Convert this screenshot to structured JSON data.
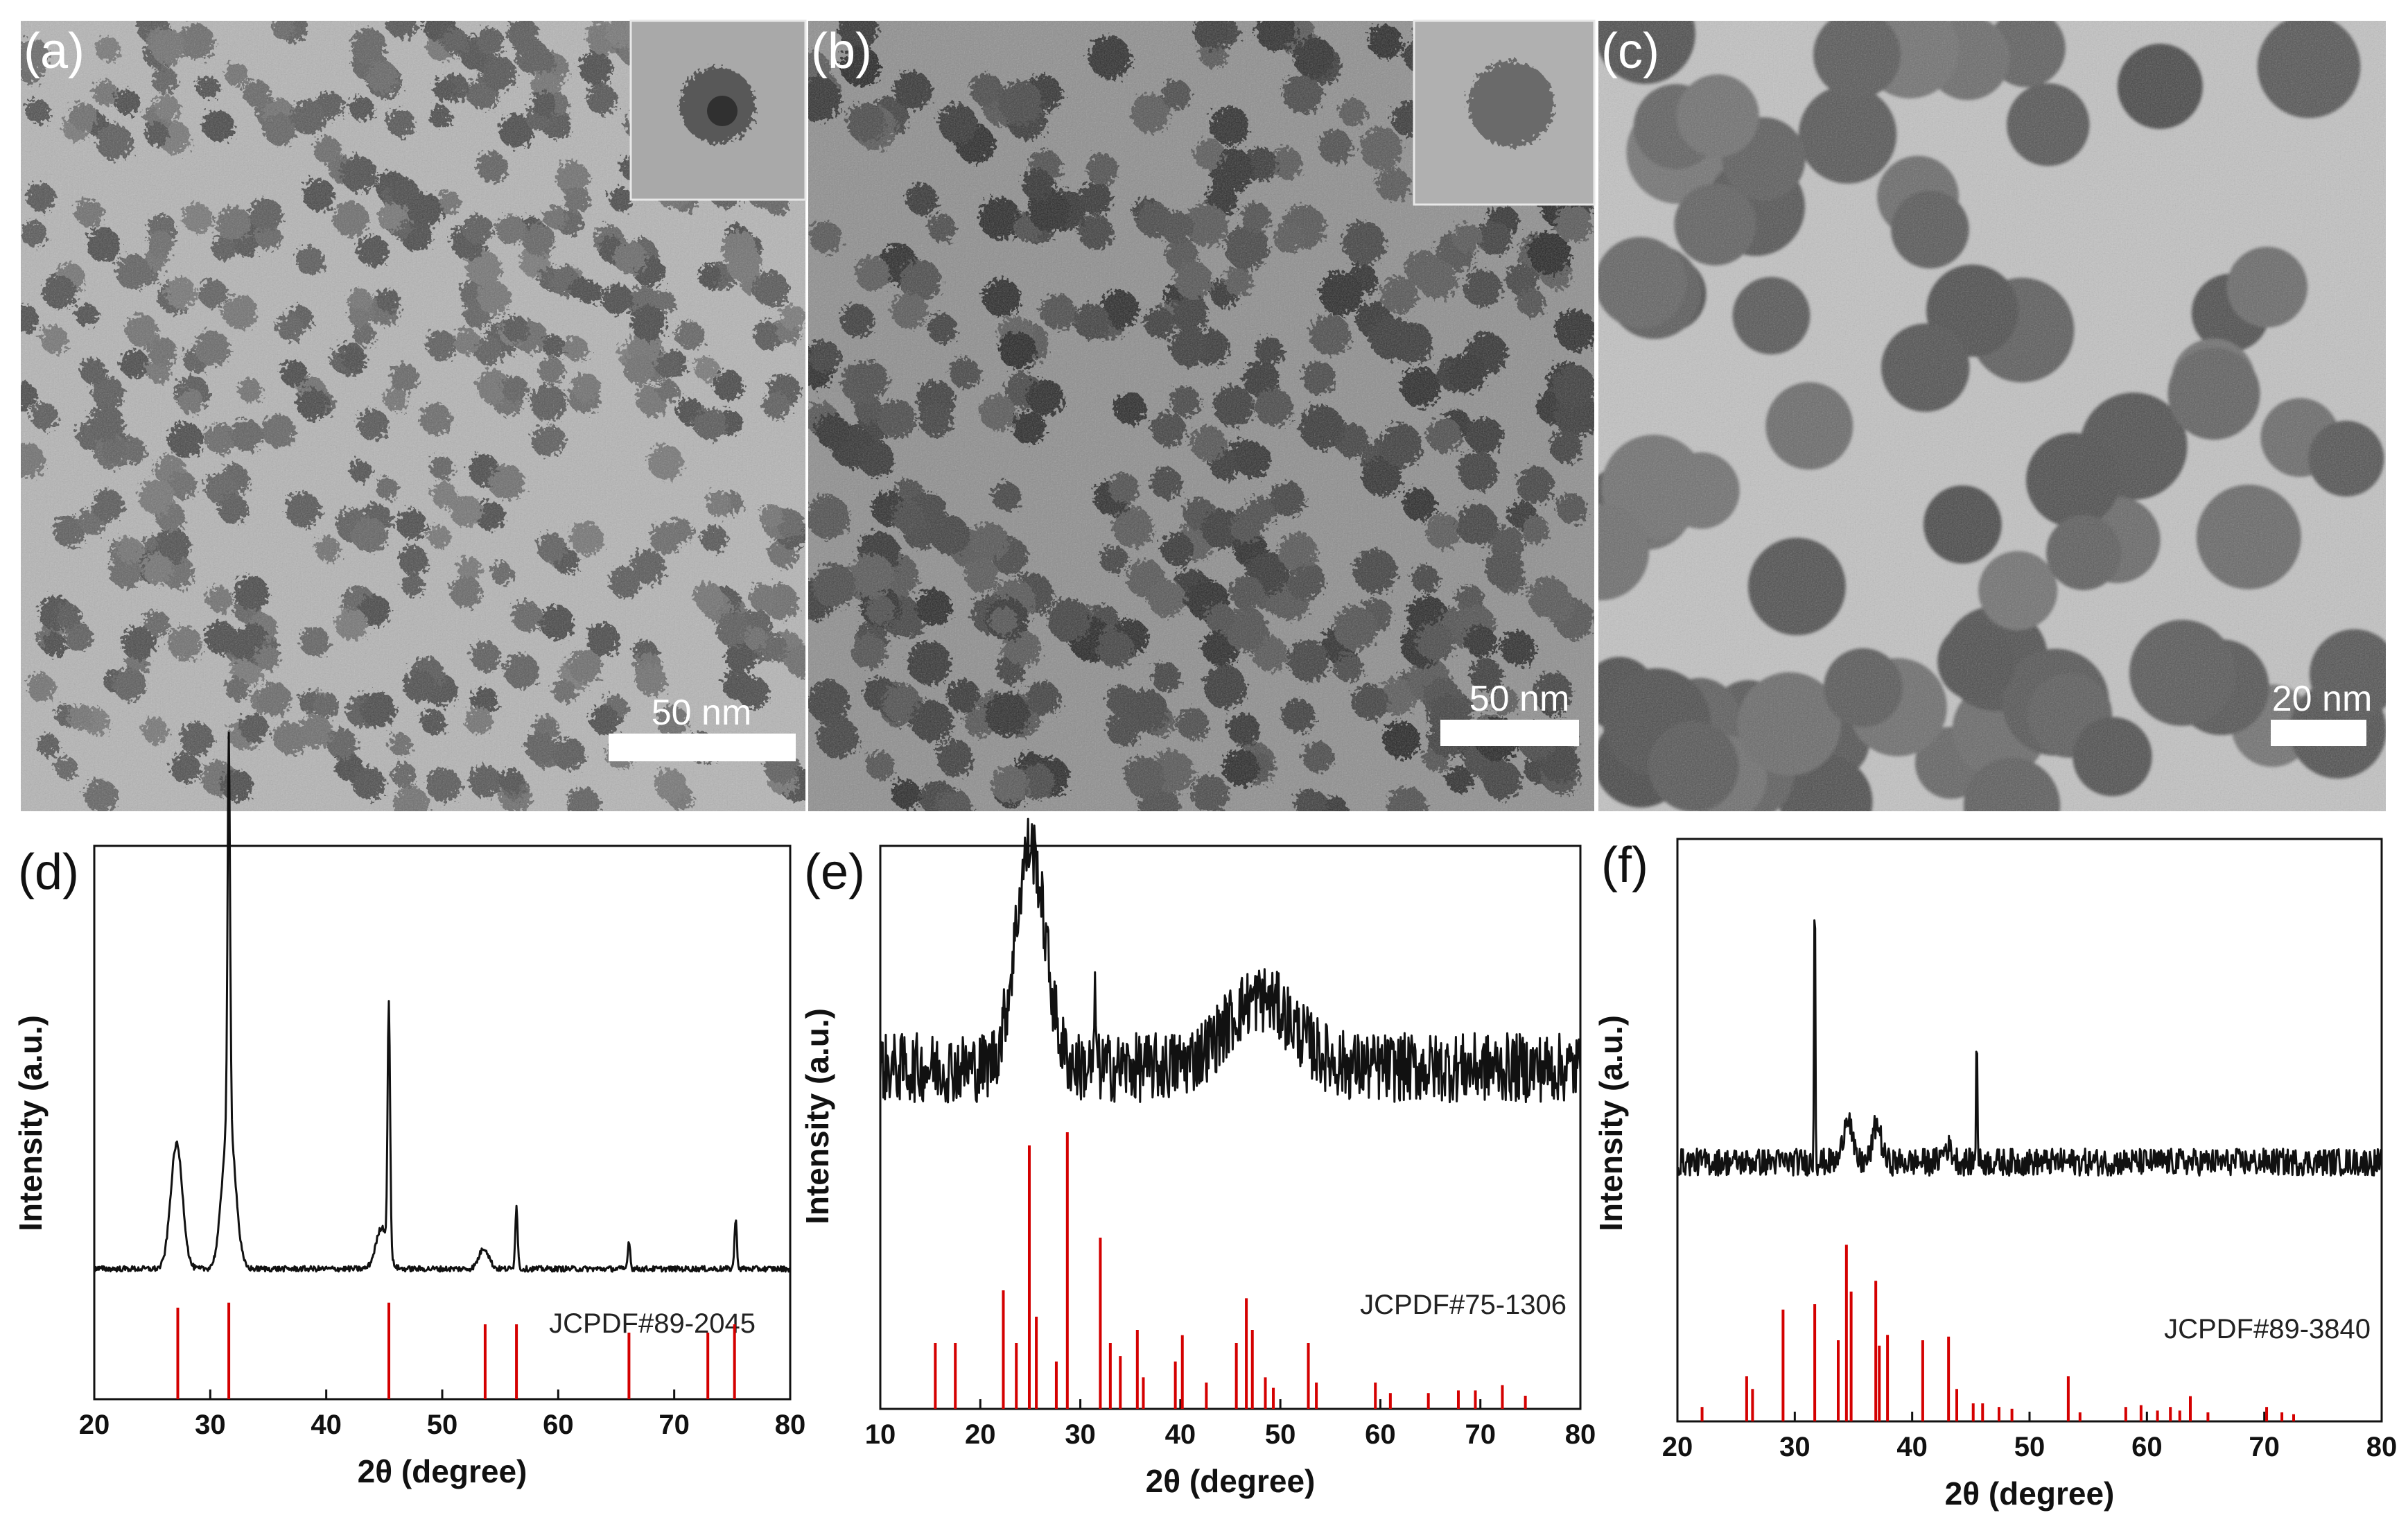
{
  "figure": {
    "tem_panels": [
      {
        "label": "(a)",
        "scale_bar": "50 nm",
        "has_inset": true
      },
      {
        "label": "(b)",
        "scale_bar": "50 nm",
        "has_inset": true
      },
      {
        "label": "(c)",
        "scale_bar": "20 nm",
        "has_inset": false
      }
    ],
    "colors": {
      "pattern": "#111111",
      "reference": "#d40000",
      "tem_dark": "#3b3b3b",
      "tem_light": "#bdbdbd"
    }
  },
  "chart_data": [
    {
      "type": "line",
      "panel": "(d)",
      "xlabel": "2θ  (degree)",
      "ylabel": "Intensity (a.u.)",
      "xlim": [
        20,
        80
      ],
      "xticks": [
        20,
        30,
        40,
        50,
        60,
        70,
        80
      ],
      "reference_label": "JCPDF#89-2045",
      "peaks": [
        {
          "x": 27.1,
          "h": 0.18,
          "w": 1.2
        },
        {
          "x": 31.6,
          "h": 0.55,
          "w": 0.25
        },
        {
          "x": 31.6,
          "h": 0.22,
          "w": 1.3
        },
        {
          "x": 45.4,
          "h": 0.36,
          "w": 0.25
        },
        {
          "x": 44.8,
          "h": 0.06,
          "w": 1.2
        },
        {
          "x": 53.6,
          "h": 0.03,
          "w": 1.0
        },
        {
          "x": 56.4,
          "h": 0.09,
          "w": 0.25
        },
        {
          "x": 66.1,
          "h": 0.04,
          "w": 0.25
        },
        {
          "x": 75.3,
          "h": 0.07,
          "w": 0.25
        }
      ],
      "noise": 0.004,
      "reference_lines": [
        {
          "x": 27.2,
          "h": 0.55
        },
        {
          "x": 31.6,
          "h": 0.58
        },
        {
          "x": 45.4,
          "h": 0.58
        },
        {
          "x": 53.7,
          "h": 0.45
        },
        {
          "x": 56.4,
          "h": 0.45
        },
        {
          "x": 66.1,
          "h": 0.4
        },
        {
          "x": 72.9,
          "h": 0.4
        },
        {
          "x": 75.2,
          "h": 0.45
        }
      ]
    },
    {
      "type": "line",
      "panel": "(e)",
      "xlabel": "2θ (degree)",
      "ylabel": "Intensity (a.u.)",
      "xlim": [
        10,
        80
      ],
      "xticks": [
        10,
        20,
        30,
        40,
        50,
        60,
        70,
        80
      ],
      "reference_label": "JCPDF#75-1306",
      "peaks": [
        {
          "x": 25.0,
          "h": 0.32,
          "w": 3.5
        },
        {
          "x": 48.0,
          "h": 0.1,
          "w": 8.0
        },
        {
          "x": 31.5,
          "h": 0.1,
          "w": 0.2
        }
      ],
      "baseline": 0.18,
      "noise": 0.05,
      "reference_lines": [
        {
          "x": 15.5,
          "h": 0.25
        },
        {
          "x": 17.5,
          "h": 0.25
        },
        {
          "x": 22.3,
          "h": 0.45
        },
        {
          "x": 23.6,
          "h": 0.25
        },
        {
          "x": 24.9,
          "h": 1.0
        },
        {
          "x": 25.6,
          "h": 0.35
        },
        {
          "x": 27.6,
          "h": 0.18
        },
        {
          "x": 28.7,
          "h": 1.05
        },
        {
          "x": 32.0,
          "h": 0.65
        },
        {
          "x": 33.0,
          "h": 0.25
        },
        {
          "x": 34.0,
          "h": 0.2
        },
        {
          "x": 35.7,
          "h": 0.3
        },
        {
          "x": 36.3,
          "h": 0.12
        },
        {
          "x": 39.5,
          "h": 0.18
        },
        {
          "x": 40.2,
          "h": 0.28
        },
        {
          "x": 42.6,
          "h": 0.1
        },
        {
          "x": 45.6,
          "h": 0.25
        },
        {
          "x": 46.6,
          "h": 0.42
        },
        {
          "x": 47.2,
          "h": 0.3
        },
        {
          "x": 48.5,
          "h": 0.12
        },
        {
          "x": 49.3,
          "h": 0.08
        },
        {
          "x": 52.8,
          "h": 0.25
        },
        {
          "x": 53.6,
          "h": 0.1
        },
        {
          "x": 59.5,
          "h": 0.1
        },
        {
          "x": 61.0,
          "h": 0.06
        },
        {
          "x": 64.8,
          "h": 0.06
        },
        {
          "x": 67.8,
          "h": 0.07
        },
        {
          "x": 69.5,
          "h": 0.07
        },
        {
          "x": 72.2,
          "h": 0.09
        },
        {
          "x": 74.5,
          "h": 0.05
        }
      ]
    },
    {
      "type": "line",
      "panel": "(f)",
      "xlabel": "2θ (degree)",
      "ylabel": "Intensity (a.u.)",
      "xlim": [
        20,
        80
      ],
      "xticks": [
        20,
        30,
        40,
        50,
        60,
        70,
        80
      ],
      "reference_label": "JCPDF#89-3840",
      "peaks": [
        {
          "x": 31.7,
          "h": 0.62,
          "w": 0.12
        },
        {
          "x": 45.5,
          "h": 0.3,
          "w": 0.12
        },
        {
          "x": 34.5,
          "h": 0.1,
          "w": 0.8
        },
        {
          "x": 37.0,
          "h": 0.08,
          "w": 0.8
        },
        {
          "x": 43.0,
          "h": 0.03,
          "w": 1.0
        }
      ],
      "baseline": 0.12,
      "noise": 0.028,
      "reference_lines": [
        {
          "x": 22.1,
          "h": 0.08
        },
        {
          "x": 25.9,
          "h": 0.25
        },
        {
          "x": 26.4,
          "h": 0.18
        },
        {
          "x": 29.0,
          "h": 0.62
        },
        {
          "x": 31.7,
          "h": 0.65
        },
        {
          "x": 33.7,
          "h": 0.45
        },
        {
          "x": 34.4,
          "h": 0.98
        },
        {
          "x": 34.8,
          "h": 0.72
        },
        {
          "x": 36.9,
          "h": 0.78
        },
        {
          "x": 37.2,
          "h": 0.42
        },
        {
          "x": 37.9,
          "h": 0.48
        },
        {
          "x": 40.9,
          "h": 0.45
        },
        {
          "x": 43.1,
          "h": 0.47
        },
        {
          "x": 43.8,
          "h": 0.18
        },
        {
          "x": 45.2,
          "h": 0.1
        },
        {
          "x": 46.0,
          "h": 0.1
        },
        {
          "x": 47.4,
          "h": 0.08
        },
        {
          "x": 48.5,
          "h": 0.07
        },
        {
          "x": 53.3,
          "h": 0.25
        },
        {
          "x": 54.3,
          "h": 0.05
        },
        {
          "x": 58.2,
          "h": 0.08
        },
        {
          "x": 59.5,
          "h": 0.09
        },
        {
          "x": 60.9,
          "h": 0.06
        },
        {
          "x": 62.0,
          "h": 0.08
        },
        {
          "x": 62.8,
          "h": 0.06
        },
        {
          "x": 63.7,
          "h": 0.14
        },
        {
          "x": 65.2,
          "h": 0.05
        },
        {
          "x": 70.2,
          "h": 0.08
        },
        {
          "x": 71.5,
          "h": 0.05
        },
        {
          "x": 72.5,
          "h": 0.04
        }
      ]
    }
  ]
}
